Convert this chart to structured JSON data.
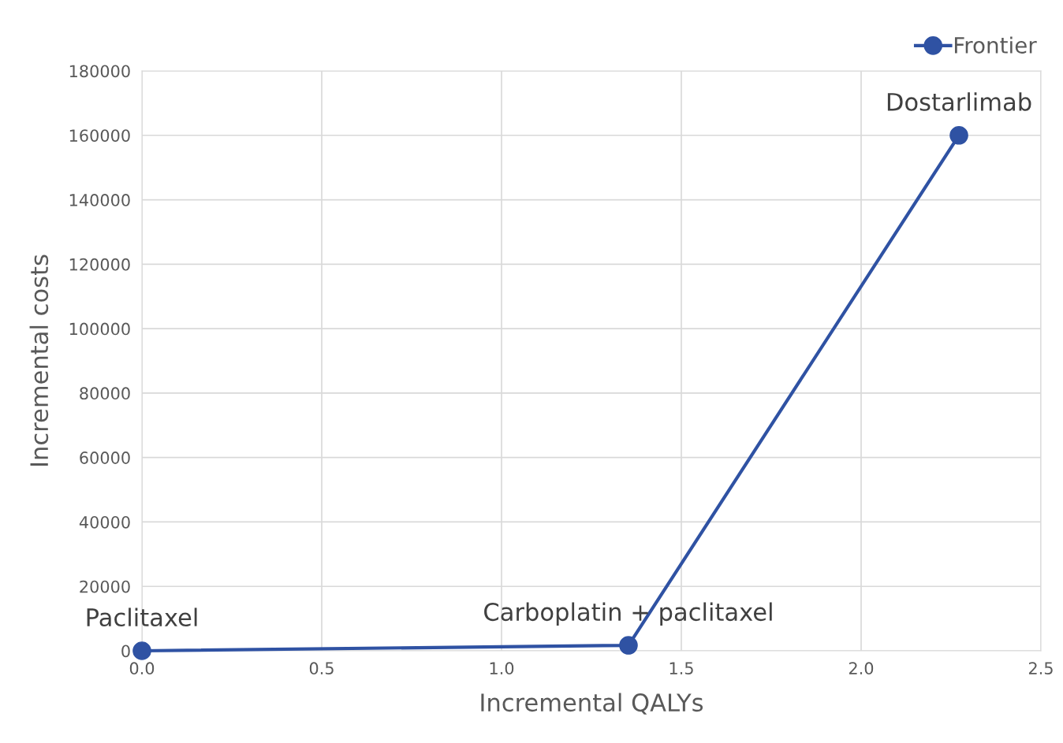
{
  "chart_data": {
    "type": "line",
    "xlabel": "Incremental QALYs",
    "ylabel": "Incremental costs",
    "x": [
      0,
      1.353,
      2.272
    ],
    "series": [
      {
        "name": "Frontier",
        "color": "#2f52a3",
        "values": [
          0,
          1700,
          160000
        ]
      }
    ],
    "xlim": [
      0,
      2.5
    ],
    "ylim": [
      0,
      180000
    ],
    "xticks": [
      {
        "value": 0,
        "label": "0.0"
      },
      {
        "value": 0.5,
        "label": "0.5"
      },
      {
        "value": 1.0,
        "label": "1.0"
      },
      {
        "value": 1.5,
        "label": "1.5"
      },
      {
        "value": 2.0,
        "label": "2.0"
      },
      {
        "value": 2.5,
        "label": "2.5"
      }
    ],
    "yticks": [
      0,
      20000,
      40000,
      60000,
      80000,
      100000,
      120000,
      140000,
      160000,
      180000
    ],
    "annotations": [
      {
        "text": "Paclitaxel",
        "x": 0,
        "y": 0
      },
      {
        "text": "Carboplatin + paclitaxel",
        "x": 1.353,
        "y": 1700
      },
      {
        "text": "Dostarlimab",
        "x": 2.272,
        "y": 160000
      }
    ],
    "grid": true,
    "legend": "top right",
    "marker": "circle",
    "line_style": "solid"
  }
}
